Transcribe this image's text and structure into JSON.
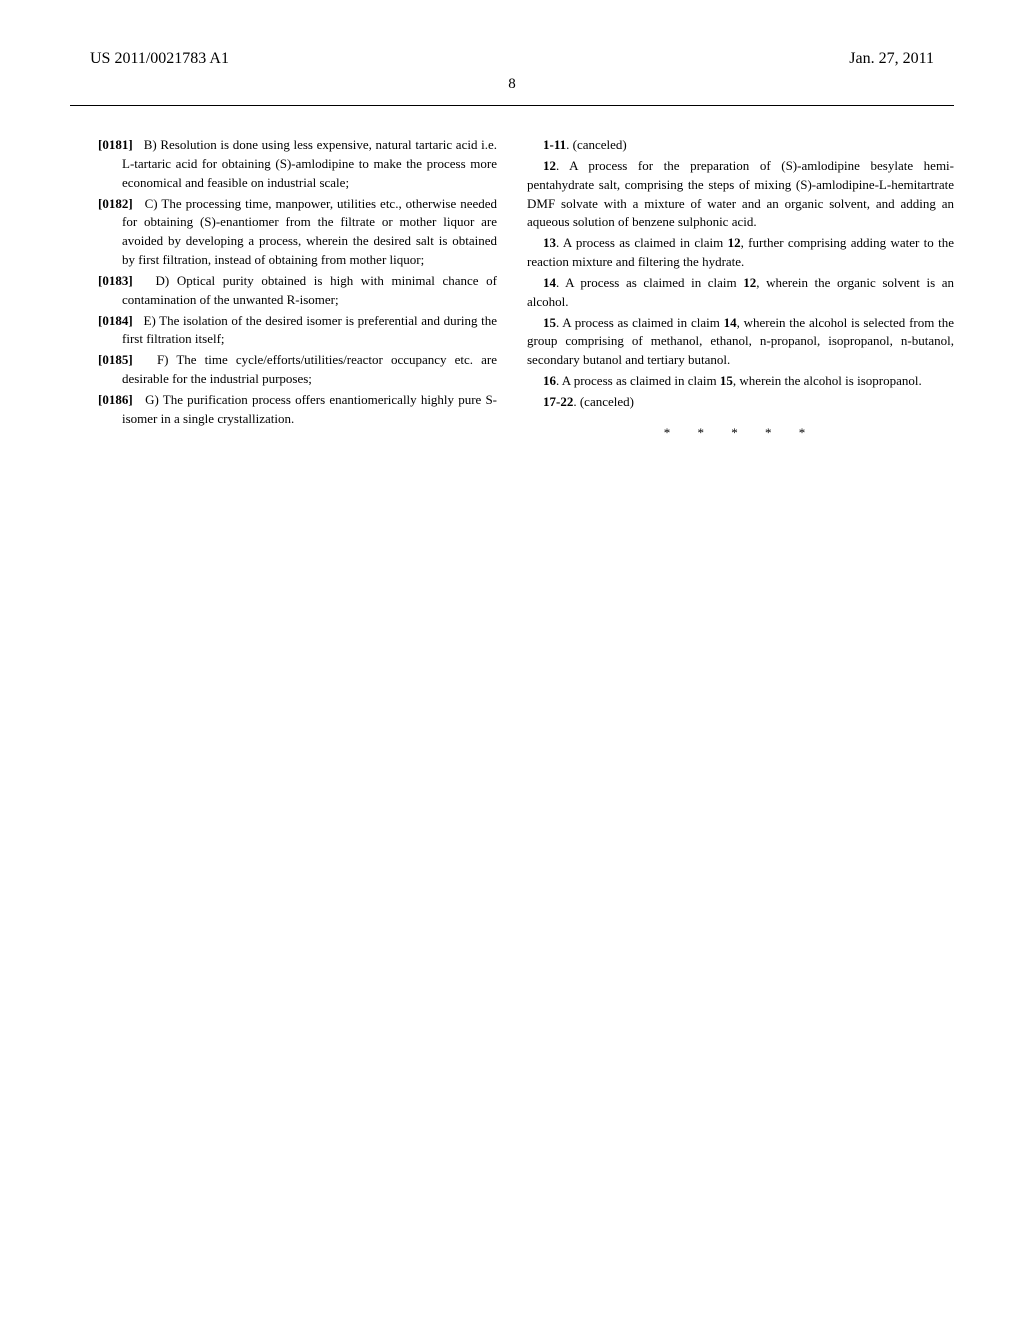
{
  "header": {
    "pub_number": "US 2011/0021783 A1",
    "pub_date": "Jan. 27, 2011",
    "page_number": "8"
  },
  "left_column": {
    "paragraphs": [
      {
        "num": "[0181]",
        "text": "B) Resolution is done using less expensive, natural tartaric acid i.e. L-tartaric acid for obtaining (S)-amlodipine to make the process more economical and feasible on industrial scale;"
      },
      {
        "num": "[0182]",
        "text": "C) The processing time, manpower, utilities etc., otherwise needed for obtaining (S)-enantiomer from the filtrate or mother liquor are avoided by developing a process, wherein the desired salt is obtained by first filtration, instead of obtaining from mother liquor;"
      },
      {
        "num": "[0183]",
        "text": "D) Optical purity obtained is high with minimal chance of contamination of the unwanted R-isomer;"
      },
      {
        "num": "[0184]",
        "text": "E) The isolation of the desired isomer is preferential and during the first filtration itself;"
      },
      {
        "num": "[0185]",
        "text": "F) The time cycle/efforts/utilities/reactor occupancy etc. are desirable for the industrial purposes;"
      },
      {
        "num": "[0186]",
        "text": "G) The purification process offers enantiomerically highly pure S-isomer in a single crystallization."
      }
    ]
  },
  "right_column": {
    "claims": [
      {
        "num": "1-11",
        "text": ". (canceled)"
      },
      {
        "num": "12",
        "text": ". A process for the preparation of (S)-amlodipine besylate hemi-pentahydrate salt, comprising the steps of mixing (S)-amlodipine-L-hemitartrate DMF solvate with a mixture of water and an organic solvent, and adding an aqueous solution of benzene sulphonic acid."
      },
      {
        "num": "13",
        "text_before": ". A process as claimed in claim ",
        "ref": "12",
        "text_after": ", further comprising adding water to the reaction mixture and filtering the hydrate."
      },
      {
        "num": "14",
        "text_before": ". A process as claimed in claim ",
        "ref": "12",
        "text_after": ", wherein the organic solvent is an alcohol."
      },
      {
        "num": "15",
        "text_before": ". A process as claimed in claim ",
        "ref": "14",
        "text_after": ", wherein the alcohol is selected from the group comprising of methanol, ethanol, n-propanol, isopropanol, n-butanol, secondary butanol and tertiary butanol."
      },
      {
        "num": "16",
        "text_before": ". A process as claimed in claim ",
        "ref": "15",
        "text_after": ", wherein the alcohol is isopropanol."
      },
      {
        "num": "17-22",
        "text": ". (canceled)"
      }
    ],
    "end_marker": "* * * * *"
  }
}
